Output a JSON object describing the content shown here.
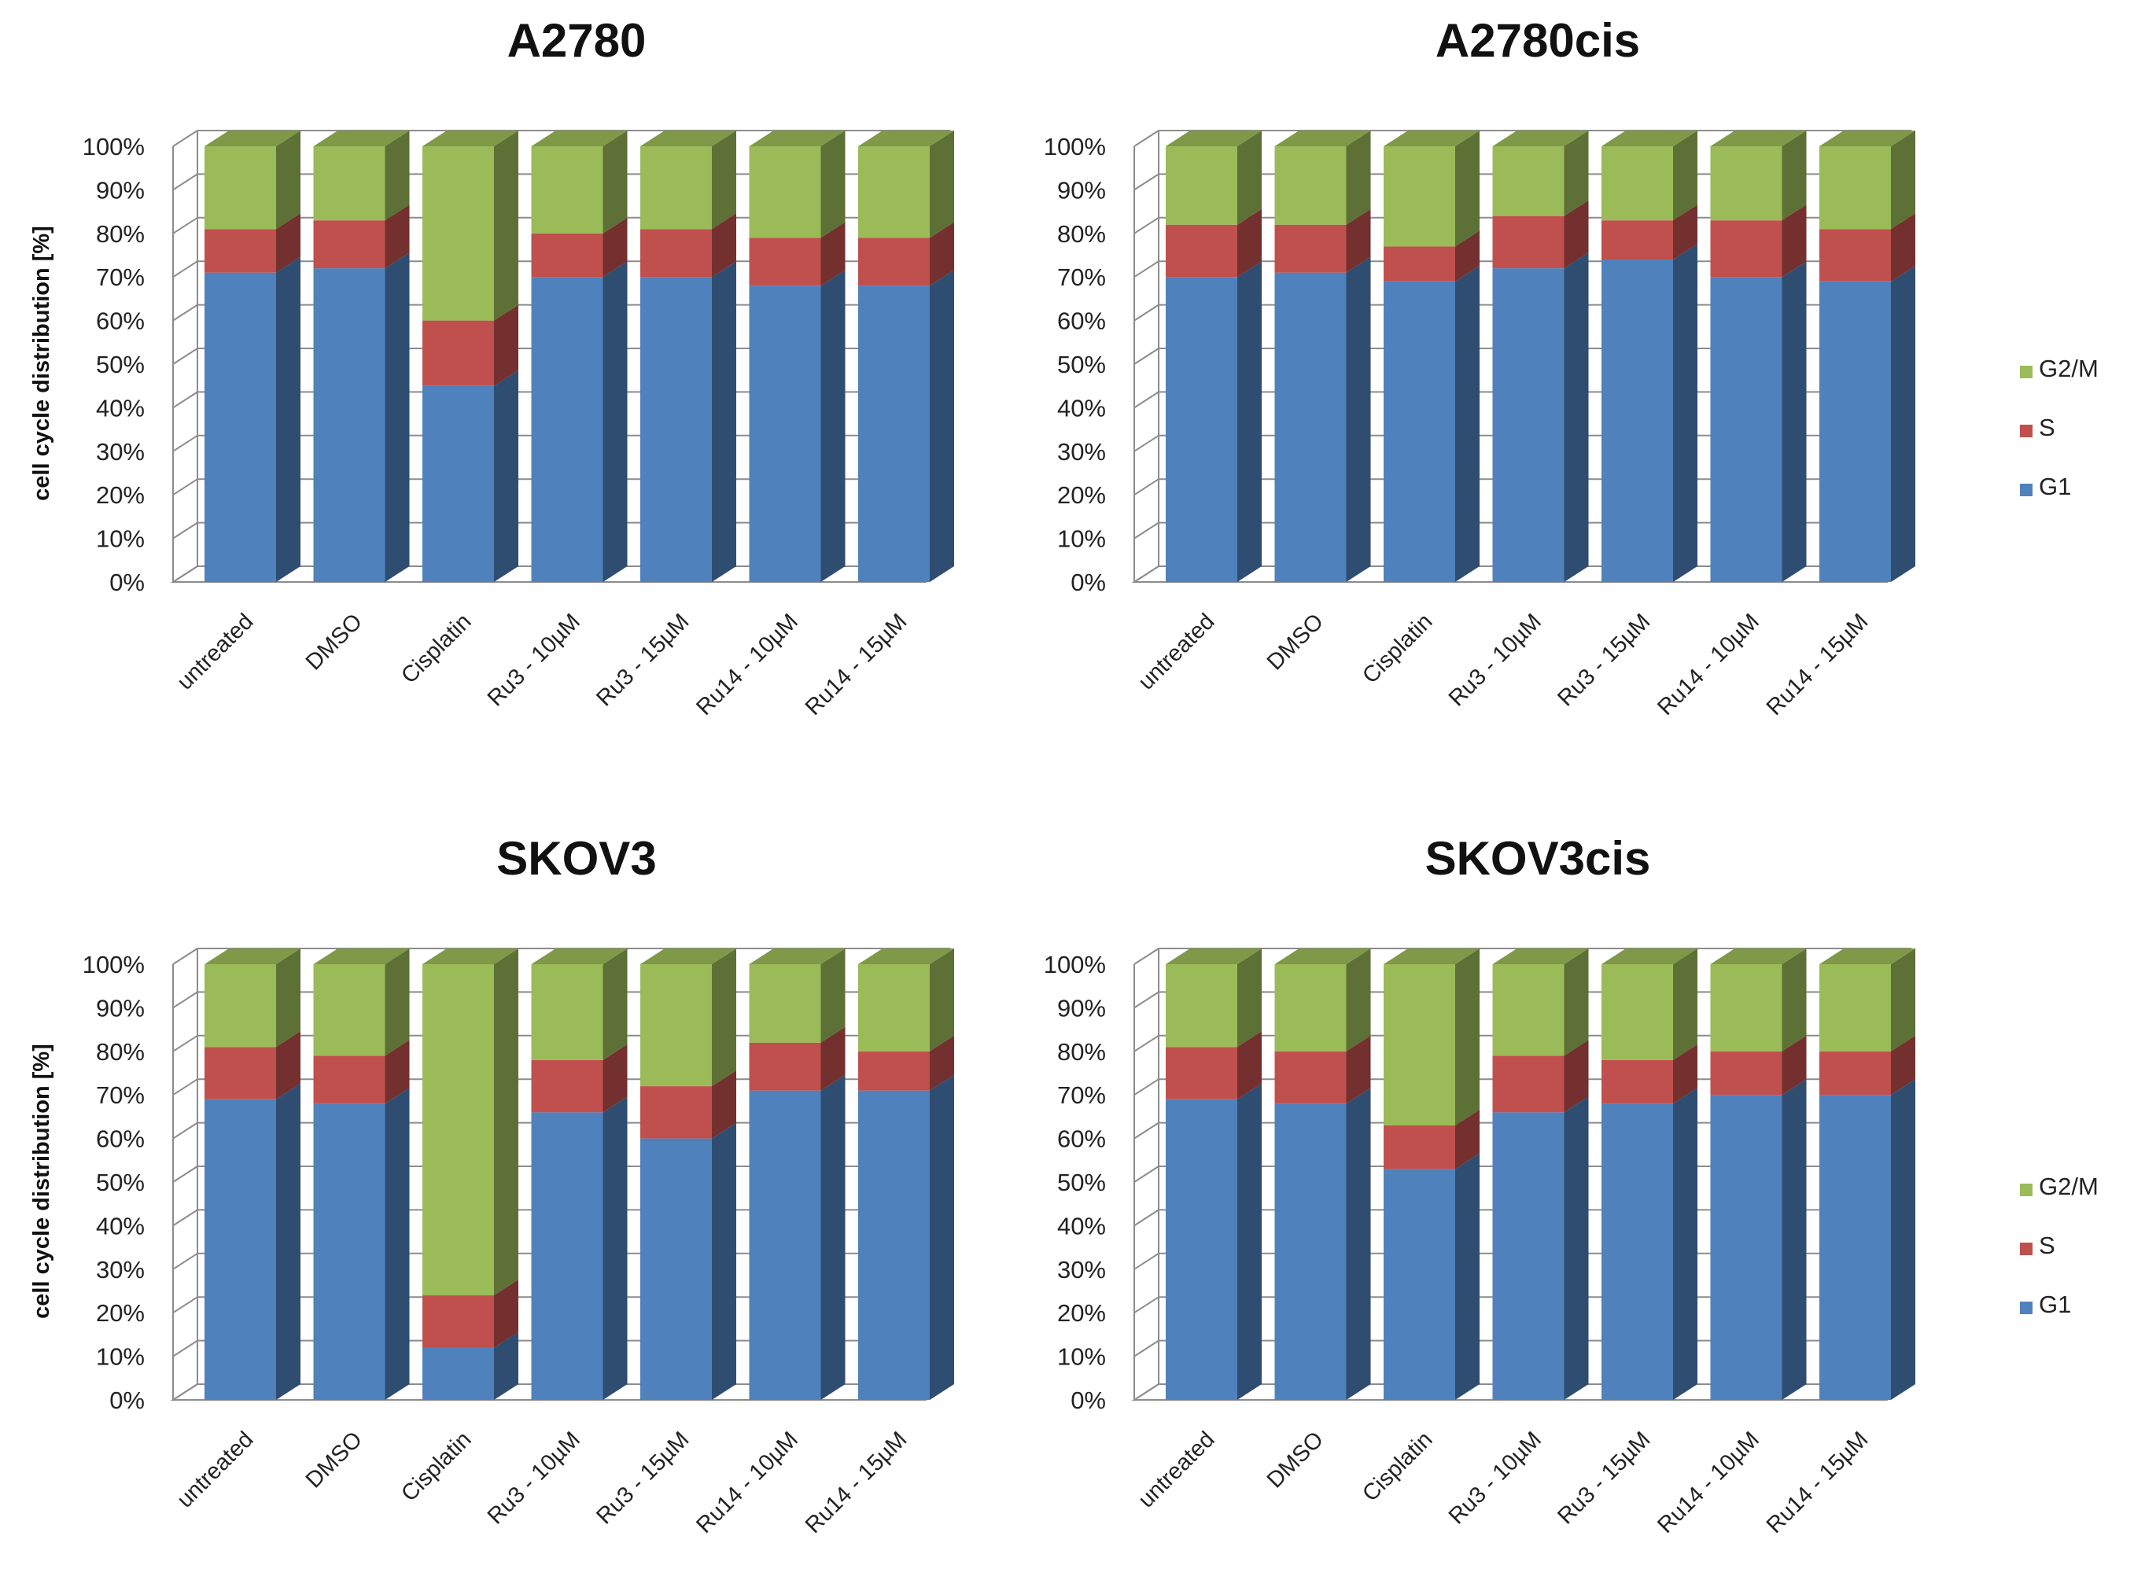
{
  "chart_data": [
    {
      "type": "bar",
      "stacked": true,
      "title": "A2780",
      "ylabel": "cell cycle distribution [%]",
      "xlabel": "",
      "ylim": [
        0,
        100
      ],
      "yticks": [
        "0%",
        "10%",
        "20%",
        "30%",
        "40%",
        "50%",
        "60%",
        "70%",
        "80%",
        "90%",
        "100%"
      ],
      "categories": [
        "untreated",
        "DMSO",
        "Cisplatin",
        "Ru3 - 10µM",
        "Ru3 - 15µM",
        "Ru14 - 10µM",
        "Ru14 - 15µM"
      ],
      "series": [
        {
          "name": "G1",
          "color": "#4f81bd",
          "values": [
            71,
            72,
            45,
            70,
            70,
            68,
            68
          ]
        },
        {
          "name": "S",
          "color": "#c0504d",
          "values": [
            10,
            11,
            15,
            10,
            11,
            11,
            11
          ]
        },
        {
          "name": "G2/M",
          "color": "#9bbb59",
          "values": [
            19,
            17,
            40,
            20,
            19,
            21,
            21
          ]
        }
      ],
      "legend": null
    },
    {
      "type": "bar",
      "stacked": true,
      "title": "A2780cis",
      "ylabel": "",
      "xlabel": "",
      "ylim": [
        0,
        100
      ],
      "yticks": [
        "0%",
        "10%",
        "20%",
        "30%",
        "40%",
        "50%",
        "60%",
        "70%",
        "80%",
        "90%",
        "100%"
      ],
      "categories": [
        "untreated",
        "DMSO",
        "Cisplatin",
        "Ru3 - 10µM",
        "Ru3 - 15µM",
        "Ru14 - 10µM",
        "Ru14 - 15µM"
      ],
      "series": [
        {
          "name": "G1",
          "color": "#4f81bd",
          "values": [
            70,
            71,
            69,
            72,
            74,
            70,
            69
          ]
        },
        {
          "name": "S",
          "color": "#c0504d",
          "values": [
            12,
            11,
            8,
            12,
            9,
            13,
            12
          ]
        },
        {
          "name": "G2/M",
          "color": "#9bbb59",
          "values": [
            18,
            18,
            23,
            16,
            17,
            17,
            19
          ]
        }
      ],
      "legend": {
        "items": [
          "G2/M",
          "S",
          "G1"
        ],
        "placement": "right"
      }
    },
    {
      "type": "bar",
      "stacked": true,
      "title": "SKOV3",
      "ylabel": "cell cycle distribution [%]",
      "xlabel": "",
      "ylim": [
        0,
        100
      ],
      "yticks": [
        "0%",
        "10%",
        "20%",
        "30%",
        "40%",
        "50%",
        "60%",
        "70%",
        "80%",
        "90%",
        "100%"
      ],
      "categories": [
        "untreated",
        "DMSO",
        "Cisplatin",
        "Ru3 - 10µM",
        "Ru3 - 15µM",
        "Ru14 - 10µM",
        "Ru14 - 15µM"
      ],
      "series": [
        {
          "name": "G1",
          "color": "#4f81bd",
          "values": [
            69,
            68,
            12,
            66,
            60,
            71,
            71
          ]
        },
        {
          "name": "S",
          "color": "#c0504d",
          "values": [
            12,
            11,
            12,
            12,
            12,
            11,
            9
          ]
        },
        {
          "name": "G2/M",
          "color": "#9bbb59",
          "values": [
            19,
            21,
            76,
            22,
            28,
            18,
            20
          ]
        }
      ],
      "legend": null
    },
    {
      "type": "bar",
      "stacked": true,
      "title": "SKOV3cis",
      "ylabel": "",
      "xlabel": "",
      "ylim": [
        0,
        100
      ],
      "yticks": [
        "0%",
        "10%",
        "20%",
        "30%",
        "40%",
        "50%",
        "60%",
        "70%",
        "80%",
        "90%",
        "100%"
      ],
      "categories": [
        "untreated",
        "DMSO",
        "Cisplatin",
        "Ru3 - 10µM",
        "Ru3 - 15µM",
        "Ru14 - 10µM",
        "Ru14 - 15µM"
      ],
      "series": [
        {
          "name": "G1",
          "color": "#4f81bd",
          "values": [
            69,
            68,
            53,
            66,
            68,
            70,
            70
          ]
        },
        {
          "name": "S",
          "color": "#c0504d",
          "values": [
            12,
            12,
            10,
            13,
            10,
            10,
            10
          ]
        },
        {
          "name": "G2/M",
          "color": "#9bbb59",
          "values": [
            19,
            20,
            37,
            21,
            22,
            20,
            20
          ]
        }
      ],
      "legend": {
        "items": [
          "G2/M",
          "S",
          "G1"
        ],
        "placement": "right"
      }
    }
  ]
}
